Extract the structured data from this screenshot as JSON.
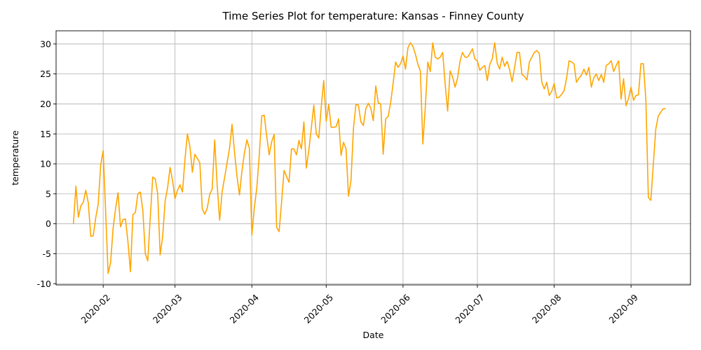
{
  "chart_data": {
    "type": "line",
    "title": "Time Series Plot for temperature: Kansas - Finney County",
    "xlabel": "Date",
    "ylabel": "temperature",
    "ylim": [
      -10.2,
      32.2
    ],
    "xlim": [
      "2020-01-13",
      "2020-09-25"
    ],
    "grid": true,
    "x_ticks": [
      "2020-02-01",
      "2020-03-01",
      "2020-04-01",
      "2020-05-01",
      "2020-06-01",
      "2020-07-01",
      "2020-08-01",
      "2020-09-01"
    ],
    "x_tick_labels": [
      "2020-02",
      "2020-03",
      "2020-04",
      "2020-05",
      "2020-06",
      "2020-07",
      "2020-08",
      "2020-09"
    ],
    "y_ticks": [
      -10,
      -5,
      0,
      5,
      10,
      15,
      20,
      25,
      30
    ],
    "line_color": "#ffa500",
    "series": [
      {
        "x": [
          "2020-01-20",
          "2020-01-21",
          "2020-01-22",
          "2020-01-23",
          "2020-01-24",
          "2020-01-25",
          "2020-01-26",
          "2020-01-27",
          "2020-01-28",
          "2020-01-29",
          "2020-01-30",
          "2020-01-31",
          "2020-02-01",
          "2020-02-02",
          "2020-02-03",
          "2020-02-04",
          "2020-02-05",
          "2020-02-06",
          "2020-02-07",
          "2020-02-08",
          "2020-02-09",
          "2020-02-10",
          "2020-02-11",
          "2020-02-12",
          "2020-02-13",
          "2020-02-14",
          "2020-02-15",
          "2020-02-16",
          "2020-02-17",
          "2020-02-18",
          "2020-02-19",
          "2020-02-20",
          "2020-02-21",
          "2020-02-22",
          "2020-02-23",
          "2020-02-24",
          "2020-02-25",
          "2020-02-26",
          "2020-02-27",
          "2020-02-28",
          "2020-02-29",
          "2020-03-01",
          "2020-03-02",
          "2020-03-03",
          "2020-03-04",
          "2020-03-05",
          "2020-03-06",
          "2020-03-07",
          "2020-03-08",
          "2020-03-09",
          "2020-03-10",
          "2020-03-11",
          "2020-03-12",
          "2020-03-13",
          "2020-03-14",
          "2020-03-15",
          "2020-03-16",
          "2020-03-17",
          "2020-03-18",
          "2020-03-19",
          "2020-03-20",
          "2020-03-21",
          "2020-03-22",
          "2020-03-23",
          "2020-03-24",
          "2020-03-25",
          "2020-03-26",
          "2020-03-27",
          "2020-03-28",
          "2020-03-29",
          "2020-03-30",
          "2020-03-31",
          "2020-04-01",
          "2020-04-02",
          "2020-04-03",
          "2020-04-04",
          "2020-04-05",
          "2020-04-06",
          "2020-04-07",
          "2020-04-08",
          "2020-04-09",
          "2020-04-10",
          "2020-04-11",
          "2020-04-12",
          "2020-04-13",
          "2020-04-14",
          "2020-04-15",
          "2020-04-16",
          "2020-04-17",
          "2020-04-18",
          "2020-04-19",
          "2020-04-20",
          "2020-04-21",
          "2020-04-22",
          "2020-04-23",
          "2020-04-24",
          "2020-04-25",
          "2020-04-26",
          "2020-04-27",
          "2020-04-28",
          "2020-04-29",
          "2020-04-30",
          "2020-05-01",
          "2020-05-02",
          "2020-05-03",
          "2020-05-04",
          "2020-05-05",
          "2020-05-06",
          "2020-05-07",
          "2020-05-08",
          "2020-05-09",
          "2020-05-10",
          "2020-05-11",
          "2020-05-12",
          "2020-05-13",
          "2020-05-14",
          "2020-05-15",
          "2020-05-16",
          "2020-05-17",
          "2020-05-18",
          "2020-05-19",
          "2020-05-20",
          "2020-05-21",
          "2020-05-22",
          "2020-05-23",
          "2020-05-24",
          "2020-05-25",
          "2020-05-26",
          "2020-05-27",
          "2020-05-28",
          "2020-05-29",
          "2020-05-30",
          "2020-05-31",
          "2020-06-01",
          "2020-06-02",
          "2020-06-03",
          "2020-06-04",
          "2020-06-05",
          "2020-06-06",
          "2020-06-07",
          "2020-06-08",
          "2020-06-09",
          "2020-06-10",
          "2020-06-11",
          "2020-06-12",
          "2020-06-13",
          "2020-06-14",
          "2020-06-15",
          "2020-06-16",
          "2020-06-17",
          "2020-06-18",
          "2020-06-19",
          "2020-06-20",
          "2020-06-21",
          "2020-06-22",
          "2020-06-23",
          "2020-06-24",
          "2020-06-25",
          "2020-06-26",
          "2020-06-27",
          "2020-06-28",
          "2020-06-29",
          "2020-06-30",
          "2020-07-01",
          "2020-07-02",
          "2020-07-03",
          "2020-07-04",
          "2020-07-05",
          "2020-07-06",
          "2020-07-07",
          "2020-07-08",
          "2020-07-09",
          "2020-07-10",
          "2020-07-11",
          "2020-07-12",
          "2020-07-13",
          "2020-07-14",
          "2020-07-15",
          "2020-07-16",
          "2020-07-17",
          "2020-07-18",
          "2020-07-19",
          "2020-07-20",
          "2020-07-21",
          "2020-07-22",
          "2020-07-23",
          "2020-07-24",
          "2020-07-25",
          "2020-07-26",
          "2020-07-27",
          "2020-07-28",
          "2020-07-29",
          "2020-07-30",
          "2020-07-31",
          "2020-08-01",
          "2020-08-02",
          "2020-08-03",
          "2020-08-04",
          "2020-08-05",
          "2020-08-06",
          "2020-08-07",
          "2020-08-08",
          "2020-08-09",
          "2020-08-10",
          "2020-08-11",
          "2020-08-12",
          "2020-08-13",
          "2020-08-14",
          "2020-08-15",
          "2020-08-16",
          "2020-08-17",
          "2020-08-18",
          "2020-08-19",
          "2020-08-20",
          "2020-08-21",
          "2020-08-22",
          "2020-08-23",
          "2020-08-24",
          "2020-08-25",
          "2020-08-26",
          "2020-08-27",
          "2020-08-28",
          "2020-08-29",
          "2020-08-30",
          "2020-08-31",
          "2020-09-01",
          "2020-09-02",
          "2020-09-03",
          "2020-09-04",
          "2020-09-05",
          "2020-09-06",
          "2020-09-07",
          "2020-09-08",
          "2020-09-09",
          "2020-09-10",
          "2020-09-11",
          "2020-09-12",
          "2020-09-13",
          "2020-09-14",
          "2020-09-15"
        ],
        "values": [
          0.0,
          6.3,
          1.1,
          3.0,
          3.6,
          5.6,
          3.5,
          -2.1,
          -2.0,
          1.0,
          3.3,
          9.8,
          12.2,
          2.0,
          -8.3,
          -6.5,
          -0.8,
          2.5,
          5.2,
          -0.5,
          0.7,
          0.8,
          -3.0,
          -8.0,
          1.5,
          1.9,
          5.0,
          5.3,
          2.3,
          -5.0,
          -6.2,
          1.0,
          7.8,
          7.5,
          5.0,
          -5.2,
          -2.2,
          3.8,
          6.0,
          9.4,
          7.2,
          4.2,
          5.6,
          6.5,
          5.3,
          10.7,
          15.0,
          12.9,
          8.6,
          11.6,
          10.9,
          10.2,
          2.5,
          1.6,
          2.6,
          4.9,
          5.8,
          14.0,
          6.5,
          0.6,
          5.3,
          7.7,
          10.2,
          12.6,
          16.6,
          12.0,
          7.9,
          4.8,
          8.8,
          11.8,
          14.0,
          12.6,
          -1.9,
          2.7,
          6.0,
          11.5,
          18.0,
          18.1,
          14.6,
          11.5,
          13.7,
          14.9,
          -0.6,
          -1.3,
          3.6,
          8.9,
          7.9,
          6.9,
          12.5,
          12.5,
          11.5,
          13.9,
          12.5,
          17.0,
          9.3,
          12.3,
          16.0,
          19.8,
          15.0,
          14.3,
          19.5,
          23.9,
          17.1,
          19.9,
          16.1,
          16.1,
          16.2,
          17.5,
          11.4,
          13.6,
          12.5,
          4.6,
          7.2,
          15.9,
          19.9,
          19.8,
          17.0,
          16.4,
          19.2,
          20.1,
          19.3,
          17.2,
          23.0,
          20.2,
          20.0,
          11.6,
          17.5,
          17.9,
          20.2,
          23.4,
          27.0,
          26.1,
          26.7,
          28.0,
          25.8,
          29.4,
          30.2,
          29.6,
          28.3,
          26.6,
          25.5,
          13.3,
          19.5,
          27.0,
          25.4,
          30.2,
          27.8,
          27.5,
          27.8,
          28.6,
          23.3,
          18.8,
          25.5,
          24.5,
          22.8,
          24.3,
          27.1,
          28.6,
          27.8,
          27.8,
          28.4,
          29.2,
          27.5,
          27.2,
          25.6,
          26.1,
          26.4,
          23.9,
          26.6,
          27.5,
          30.2,
          26.8,
          25.8,
          27.8,
          26.3,
          27.1,
          25.7,
          23.7,
          26.0,
          28.6,
          28.6,
          24.9,
          24.6,
          24.0,
          27.0,
          27.8,
          28.6,
          28.9,
          28.4,
          23.6,
          22.5,
          23.6,
          21.4,
          22.1,
          23.4,
          21.0,
          21.1,
          21.6,
          22.2,
          24.3,
          27.2,
          27.0,
          26.7,
          23.6,
          24.3,
          24.8,
          25.8,
          24.8,
          26.1,
          22.8,
          24.4,
          25.0,
          23.9,
          24.9,
          23.6,
          26.4,
          26.7,
          27.2,
          25.4,
          26.4,
          27.2,
          20.8,
          24.2,
          19.7,
          20.9,
          22.8,
          20.6,
          21.4,
          21.5,
          26.7,
          26.7,
          20.6,
          4.4,
          3.9,
          9.9,
          15.8,
          18.0,
          18.6,
          19.2,
          19.2
        ]
      }
    ]
  }
}
